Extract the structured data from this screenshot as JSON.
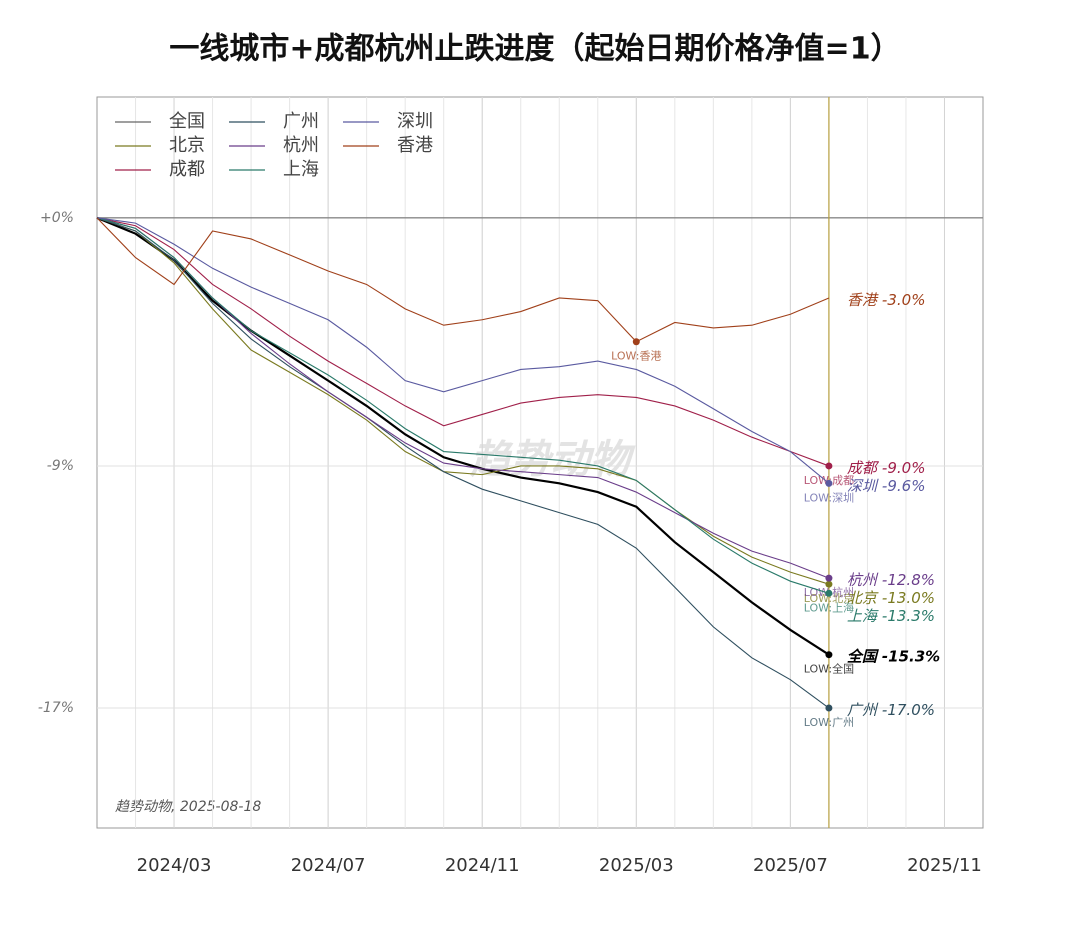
{
  "chart_data": {
    "type": "line",
    "title": "一线城市+成都杭州止跌进度（起始日期价格净值=1）",
    "note": "趋势动物, 2025-08-18",
    "watermark": "趋势动物",
    "log_scale": true,
    "grid": true,
    "legend": "upper left",
    "x": [
      "2024/01",
      "2024/02",
      "2024/03",
      "2024/04",
      "2024/05",
      "2024/06",
      "2024/07",
      "2024/08",
      "2024/09",
      "2024/10",
      "2024/11",
      "2024/12",
      "2025/01",
      "2025/02",
      "2025/03",
      "2025/04",
      "2025/05",
      "2025/06",
      "2025/07",
      "2025/08"
    ],
    "xlim": [
      "2024/01",
      "2025/12"
    ],
    "xticks": [
      "2024/03",
      "2024/07",
      "2024/11",
      "2025/03",
      "2025/07",
      "2025/11"
    ],
    "ylim": [
      -20.7,
      4.7
    ],
    "yticks": [
      {
        "value": 0,
        "label": "+0%"
      },
      {
        "value": -9,
        "label": "-9%"
      },
      {
        "value": -17,
        "label": "-17%"
      }
    ],
    "series": [
      {
        "name": "全国",
        "color": "#000000",
        "values": [
          0,
          -0.6,
          -1.6,
          -3.1,
          -4.2,
          -5.1,
          -6.0,
          -6.9,
          -7.9,
          -8.7,
          -9.1,
          -9.4,
          -9.6,
          -9.9,
          -10.4,
          -11.6,
          -12.6,
          -13.6,
          -14.5,
          -15.3
        ],
        "value_labels": [
          null,
          null,
          null,
          null,
          null,
          null,
          null,
          null,
          null,
          null,
          null,
          null,
          null,
          null,
          null,
          null,
          null,
          null,
          null,
          "-15.3%"
        ],
        "low_label": "LOW:全国"
      },
      {
        "name": "北京",
        "color": "#7a7a20",
        "values": [
          0,
          -0.5,
          -1.7,
          -3.4,
          -4.9,
          -5.7,
          -6.5,
          -7.4,
          -8.5,
          -9.2,
          -9.3,
          -9.0,
          -9.0,
          -9.1,
          -9.5,
          -10.5,
          -11.4,
          -12.1,
          -12.6,
          -13.0
        ],
        "value_labels": [
          null,
          null,
          null,
          null,
          null,
          null,
          null,
          null,
          null,
          null,
          null,
          null,
          null,
          null,
          null,
          null,
          null,
          null,
          null,
          "-13.0%"
        ],
        "low_label": "LOW:北京"
      },
      {
        "name": "成都",
        "color": "#a0204a",
        "values": [
          0,
          -0.3,
          -1.2,
          -2.5,
          -3.4,
          -4.4,
          -5.3,
          -6.1,
          -6.9,
          -7.6,
          -7.2,
          -6.8,
          -6.6,
          -6.5,
          -6.6,
          -6.9,
          -7.4,
          -8.0,
          -8.5,
          -9.0
        ],
        "value_labels": [
          null,
          null,
          null,
          null,
          null,
          null,
          null,
          null,
          null,
          null,
          null,
          null,
          null,
          null,
          null,
          null,
          null,
          null,
          null,
          "-9.0%"
        ],
        "low_label": "LOW:成都"
      },
      {
        "name": "广州",
        "color": "#2f4f5f",
        "values": [
          0,
          -0.5,
          -1.6,
          -3.2,
          -4.5,
          -5.5,
          -6.4,
          -7.3,
          -8.3,
          -9.2,
          -9.8,
          -10.2,
          -10.6,
          -11.0,
          -11.8,
          -13.1,
          -14.4,
          -15.4,
          -16.1,
          -17.0
        ],
        "value_labels": [
          null,
          null,
          null,
          null,
          null,
          null,
          null,
          null,
          null,
          null,
          null,
          null,
          null,
          null,
          null,
          null,
          null,
          null,
          null,
          "-17.0%"
        ],
        "low_label": "LOW:广州"
      },
      {
        "name": "杭州",
        "color": "#6a3d8a",
        "values": [
          0,
          -0.4,
          -1.5,
          -3.0,
          -4.3,
          -5.4,
          -6.4,
          -7.3,
          -8.2,
          -8.9,
          -9.1,
          -9.2,
          -9.3,
          -9.4,
          -9.9,
          -10.6,
          -11.3,
          -11.9,
          -12.3,
          -12.8
        ],
        "value_labels": [
          null,
          null,
          null,
          null,
          null,
          null,
          null,
          null,
          null,
          null,
          null,
          null,
          null,
          null,
          null,
          null,
          null,
          null,
          null,
          "-12.8%"
        ],
        "low_label": "LOW:杭州"
      },
      {
        "name": "上海",
        "color": "#2a7a6a",
        "values": [
          0,
          -0.4,
          -1.5,
          -3.0,
          -4.2,
          -5.0,
          -5.8,
          -6.7,
          -7.7,
          -8.5,
          -8.6,
          -8.7,
          -8.8,
          -9.0,
          -9.5,
          -10.5,
          -11.5,
          -12.3,
          -12.9,
          -13.3
        ],
        "value_labels": [
          null,
          null,
          null,
          null,
          null,
          null,
          null,
          null,
          null,
          null,
          null,
          null,
          null,
          null,
          null,
          null,
          null,
          null,
          null,
          "-13.3%"
        ],
        "low_label": "LOW:上海"
      },
      {
        "name": "深圳",
        "color": "#5a5aa0",
        "values": [
          0,
          -0.2,
          -1.0,
          -1.9,
          -2.6,
          -3.2,
          -3.8,
          -4.8,
          -6.0,
          -6.4,
          -6.0,
          -5.6,
          -5.5,
          -5.3,
          -5.6,
          -6.2,
          -7.0,
          -7.8,
          -8.5,
          -9.6
        ],
        "value_labels": [
          null,
          null,
          null,
          null,
          null,
          null,
          null,
          null,
          null,
          null,
          null,
          null,
          null,
          null,
          null,
          null,
          null,
          null,
          null,
          "-9.6%"
        ],
        "low_label": "LOW:深圳"
      },
      {
        "name": "香港",
        "color": "#a0401a",
        "values": [
          0,
          -1.5,
          -2.5,
          -0.5,
          -0.8,
          -1.4,
          -2.0,
          -2.5,
          -3.4,
          -4.0,
          -3.8,
          -3.5,
          -3.0,
          -3.1,
          -4.6,
          -3.9,
          -4.1,
          -4.0,
          -3.6,
          -3.0
        ],
        "value_labels": [
          null,
          null,
          null,
          null,
          null,
          null,
          null,
          null,
          null,
          null,
          null,
          null,
          null,
          null,
          null,
          null,
          null,
          null,
          null,
          "-3.0%"
        ],
        "low_label": "LOW:香港"
      }
    ]
  }
}
